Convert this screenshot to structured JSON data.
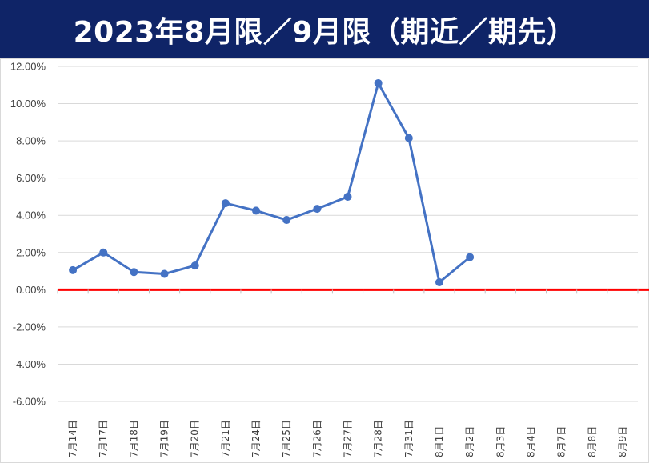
{
  "chart_data": {
    "type": "line",
    "title": "2023年8月限／9月限（期近／期先）",
    "categories": [
      "7月14日",
      "7月17日",
      "7月18日",
      "7月19日",
      "7月20日",
      "7月21日",
      "7月24日",
      "7月25日",
      "7月26日",
      "7月27日",
      "7月28日",
      "7月31日",
      "8月1日",
      "8月2日",
      "8月3日",
      "8月4日",
      "8月7日",
      "8月8日",
      "8月9日"
    ],
    "series": [
      {
        "values": [
          1.05,
          2.0,
          0.95,
          0.85,
          1.3,
          4.65,
          4.25,
          3.75,
          4.35,
          5.0,
          11.1,
          8.15,
          0.4,
          1.75,
          null,
          null,
          null,
          null,
          null
        ]
      }
    ],
    "ylim": [
      -6,
      12
    ],
    "yticks": [
      -6,
      -4,
      -2,
      0,
      2,
      4,
      6,
      8,
      10,
      12
    ],
    "ytick_labels": [
      "-6.00%",
      "-4.00%",
      "-2.00%",
      "0.00%",
      "2.00%",
      "4.00%",
      "6.00%",
      "8.00%",
      "10.00%",
      "12.00%"
    ],
    "grid": true,
    "legend": "none",
    "colors": {
      "line": "#4472c4",
      "zero_line": "#ff0000",
      "title_bg": "#0f2467",
      "grid": "#d9d9d9"
    }
  }
}
